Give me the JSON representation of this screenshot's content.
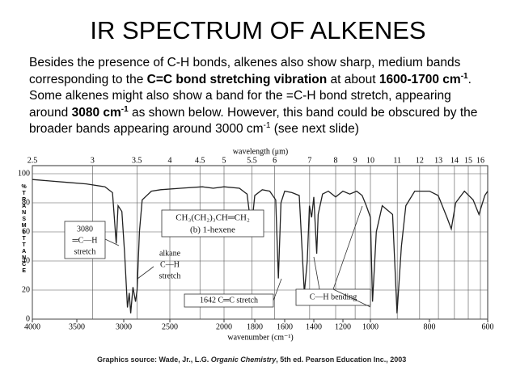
{
  "title": "IR SPECTRUM OF ALKENES",
  "body": [
    [
      {
        "text": "Besides the presence of C-H bonds, alkenes also show sharp, medium bands"
      }
    ],
    [
      {
        "text": "corresponding to the "
      },
      {
        "text": "C=C bond stretching vibration",
        "bold": true
      },
      {
        "text": " at about "
      },
      {
        "text": "1600-1700 cm",
        "bold": true
      },
      {
        "text": "-1",
        "bold": true,
        "sup": true
      },
      {
        "text": "."
      }
    ],
    [
      {
        "text": "Some alkenes might also show a band for the =C-H bond stretch, appearing"
      }
    ],
    [
      {
        "text": "around "
      },
      {
        "text": "3080 cm",
        "bold": true
      },
      {
        "text": "-1",
        "bold": true,
        "sup": true
      },
      {
        "text": " as shown below. However, this band could be obscured by the"
      }
    ],
    [
      {
        "text": "broader bands appearing around 3000 cm"
      },
      {
        "text": "-1",
        "sup": true
      },
      {
        "text": " (see next slide)"
      }
    ]
  ],
  "chart_data": {
    "type": "line",
    "x_label": "wavenumber (cm⁻¹)",
    "x2_label": "wavelength (μm)",
    "y_label": "%TRANSMITTANCE",
    "xlim": [
      4000,
      600
    ],
    "xticks": [
      4000,
      3500,
      3000,
      2500,
      2000,
      1800,
      1600,
      1400,
      1200,
      1000,
      800,
      600
    ],
    "x2ticks": [
      2.5,
      3,
      3.5,
      4,
      4.5,
      5,
      5.5,
      6,
      7,
      8,
      9,
      10,
      11,
      12,
      13,
      14,
      15,
      16
    ],
    "ylim": [
      0,
      100
    ],
    "yticks": [
      0,
      20,
      40,
      60,
      80,
      100
    ],
    "grid": true,
    "color": "#222222",
    "x": [
      4000,
      3800,
      3600,
      3400,
      3200,
      3120,
      3080,
      3060,
      3020,
      2990,
      2960,
      2940,
      2925,
      2900,
      2872,
      2855,
      2830,
      2800,
      2700,
      2600,
      2400,
      2200,
      2100,
      2000,
      1900,
      1850,
      1822,
      1800,
      1750,
      1700,
      1660,
      1642,
      1625,
      1600,
      1550,
      1500,
      1465,
      1445,
      1430,
      1415,
      1400,
      1380,
      1370,
      1340,
      1300,
      1250,
      1200,
      1150,
      1100,
      1060,
      1030,
      1000,
      993,
      980,
      960,
      925,
      910,
      895,
      880,
      850,
      800,
      770,
      740,
      725,
      710,
      680,
      650,
      630,
      610,
      600
    ],
    "values": [
      96,
      95,
      94,
      93,
      91,
      87,
      52,
      78,
      74,
      45,
      8,
      18,
      4,
      22,
      12,
      20,
      60,
      82,
      88,
      89,
      90,
      91,
      90,
      91,
      90,
      86,
      62,
      85,
      89,
      88,
      82,
      28,
      80,
      88,
      87,
      85,
      18,
      40,
      78,
      70,
      84,
      45,
      72,
      86,
      88,
      84,
      88,
      86,
      88,
      85,
      78,
      70,
      12,
      60,
      78,
      72,
      4,
      50,
      78,
      88,
      88,
      85,
      70,
      62,
      80,
      88,
      82,
      72,
      85,
      88
    ],
    "annotations": [
      "3080",
      "═C—H",
      "stretch",
      "alkane",
      "C—H",
      "stretch",
      "CH₃(CH₂)₃CH═CH₂",
      "(b) 1-hexene",
      "1642 C═C stretch",
      "C—H bending"
    ]
  },
  "source": [
    {
      "text": "Graphics source: Wade, Jr., L.G. "
    },
    {
      "text": "Organic Chemistry",
      "italic": true
    },
    {
      "text": ", 5th ed. Pearson Education Inc., 2003"
    }
  ]
}
